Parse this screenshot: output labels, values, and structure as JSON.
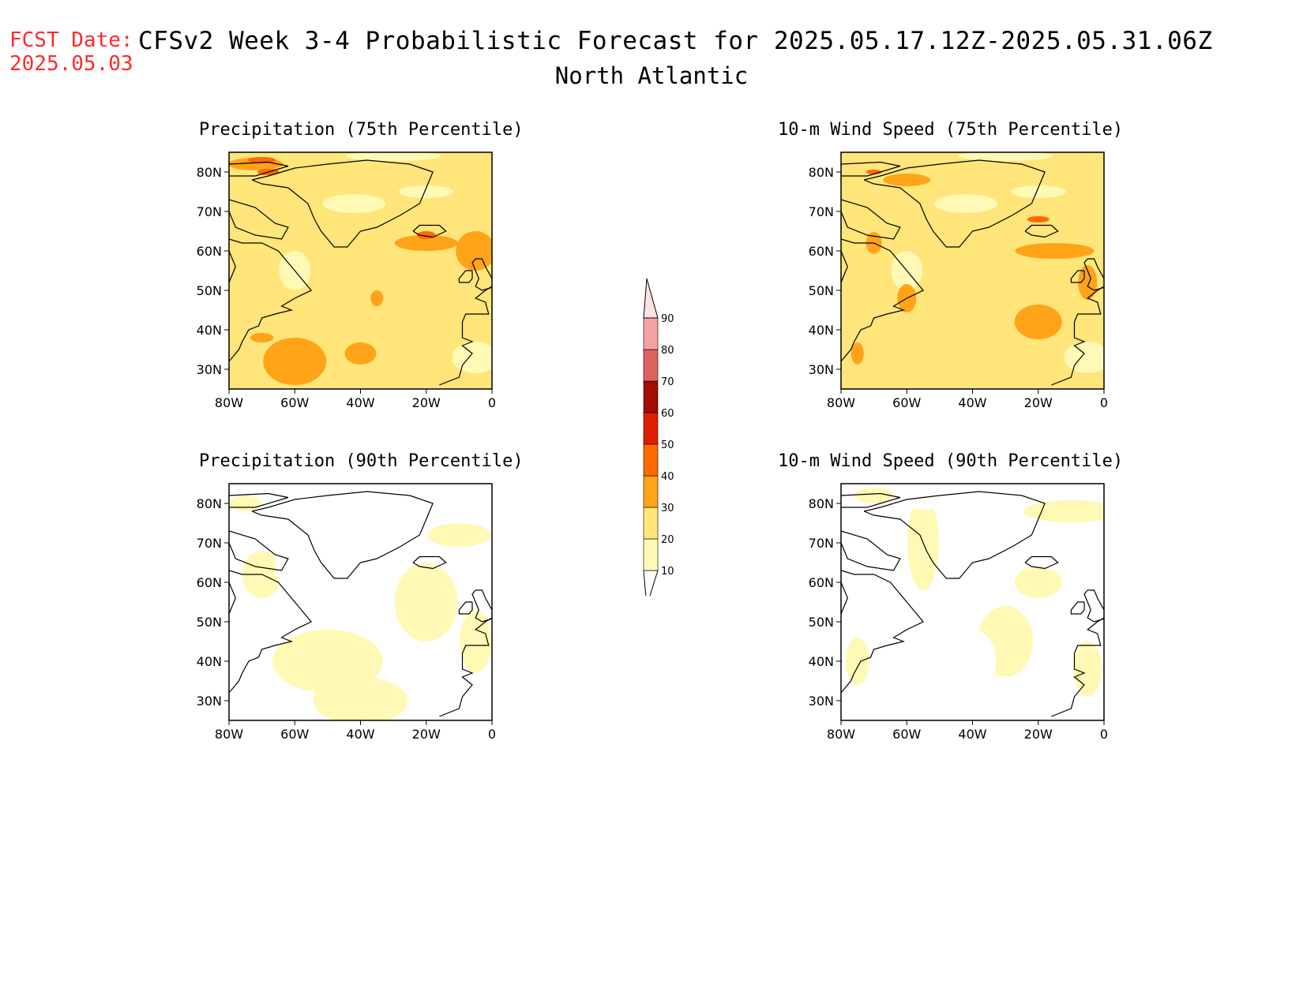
{
  "header": {
    "fcst_label": "FCST Date:",
    "fcst_date": "2025.05.03",
    "title": "CFSv2 Week 3-4 Probabilistic Forecast for 2025.05.17.12Z-2025.05.31.06Z",
    "region": "North Atlantic"
  },
  "panels": [
    {
      "title": "Precipitation (75th Percentile)",
      "level": "high"
    },
    {
      "title": "10-m Wind Speed (75th Percentile)",
      "level": "high"
    },
    {
      "title": "Precipitation (90th Percentile)",
      "level": "low"
    },
    {
      "title": "10-m Wind Speed (90th Percentile)",
      "level": "low"
    }
  ],
  "axes": {
    "lat_ticks": [
      "80N",
      "70N",
      "60N",
      "50N",
      "40N",
      "30N"
    ],
    "lon_ticks": [
      "80W",
      "60W",
      "40W",
      "20W",
      "0"
    ]
  },
  "colorbar": {
    "levels": [
      "10",
      "20",
      "30",
      "40",
      "50",
      "60",
      "70",
      "80",
      "90"
    ],
    "colors": [
      "#fff9b5",
      "#ffe57a",
      "#ffa318",
      "#ff6a00",
      "#e01e00",
      "#a40c00",
      "#e06060",
      "#f4a3a3",
      "#fde2e2"
    ]
  }
}
